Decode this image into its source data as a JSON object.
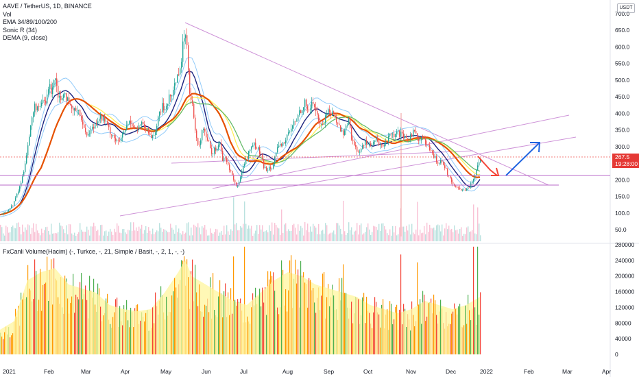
{
  "legend": {
    "symbol": "AAVE / TetherUS, 1D, BINANCE",
    "vol": "Vol",
    "ema": "EMA 34/89/100/200",
    "sonic": "Sonic R (34)",
    "dema": "DEMA (9, close)",
    "fx_volume": "FxCanli Volume(Hacim) (-, Turkce, -, 21, Simple / Basit, -, 2, 1, -, -)"
  },
  "currency": "USDT",
  "last_price": "267.5",
  "countdown": "19:28:00",
  "colors": {
    "up": "#26a69a",
    "down": "#ef5350",
    "volume_up": "#4caf50",
    "volume_down": "#f44336",
    "volume_base": "#ff9800",
    "volume_ma": "#fff59d",
    "ema34": "#1a237e",
    "ema89": "#66bb6a",
    "ema100": "#ff9800",
    "ema200": "#ffee58",
    "sonic": "#90caf9",
    "dema": "#e65100",
    "trendline": "#ce93d8",
    "red_arrow": "#f44336",
    "blue_arrow": "#1e63e0"
  },
  "chart_data": {
    "type": "candlestick",
    "price_axis": {
      "ticks": [
        "700.0",
        "650.0",
        "600.0",
        "550.0",
        "500.0",
        "450.0",
        "400.0",
        "350.0",
        "300.0",
        "250.0",
        "200.0",
        "150.0",
        "100.0",
        "50.0"
      ],
      "range": [
        50,
        700
      ]
    },
    "volume_axis": {
      "ticks": [
        "280000",
        "240000",
        "200000",
        "160000",
        "120000",
        "80000",
        "40000",
        "0"
      ],
      "range": [
        0,
        280000
      ]
    },
    "time_axis": [
      "2021",
      "Feb",
      "Mar",
      "Apr",
      "May",
      "Jun",
      "Jul",
      "Aug",
      "Sep",
      "Oct",
      "Nov",
      "Dec",
      "2022",
      "Feb",
      "Mar",
      "Apr"
    ],
    "price_path": [
      [
        0,
        95
      ],
      [
        6,
        100
      ],
      [
        12,
        110
      ],
      [
        18,
        125
      ],
      [
        23,
        150
      ],
      [
        28,
        178
      ],
      [
        33,
        215
      ],
      [
        38,
        280
      ],
      [
        42,
        330
      ],
      [
        46,
        385
      ],
      [
        50,
        420
      ],
      [
        54,
        420
      ],
      [
        58,
        410
      ],
      [
        62,
        440
      ],
      [
        66,
        430
      ],
      [
        70,
        480
      ],
      [
        74,
        470
      ],
      [
        77,
        500
      ],
      [
        80,
        510
      ],
      [
        84,
        460
      ],
      [
        88,
        440
      ],
      [
        92,
        470
      ],
      [
        96,
        450
      ],
      [
        100,
        420
      ],
      [
        104,
        410
      ],
      [
        108,
        405
      ],
      [
        112,
        420
      ],
      [
        116,
        400
      ],
      [
        120,
        360
      ],
      [
        124,
        350
      ],
      [
        128,
        335
      ],
      [
        132,
        350
      ],
      [
        136,
        360
      ],
      [
        140,
        380
      ],
      [
        144,
        390
      ],
      [
        148,
        385
      ],
      [
        152,
        380
      ],
      [
        156,
        360
      ],
      [
        160,
        345
      ],
      [
        164,
        335
      ],
      [
        168,
        320
      ],
      [
        172,
        310
      ],
      [
        176,
        325
      ],
      [
        180,
        340
      ],
      [
        184,
        360
      ],
      [
        188,
        375
      ],
      [
        192,
        370
      ],
      [
        196,
        360
      ],
      [
        200,
        350
      ],
      [
        204,
        370
      ],
      [
        208,
        360
      ],
      [
        212,
        350
      ],
      [
        216,
        340
      ],
      [
        220,
        330
      ],
      [
        224,
        340
      ],
      [
        228,
        360
      ],
      [
        232,
        400
      ],
      [
        236,
        420
      ],
      [
        240,
        410
      ],
      [
        244,
        440
      ],
      [
        248,
        450
      ],
      [
        252,
        470
      ],
      [
        256,
        500
      ],
      [
        260,
        530
      ],
      [
        264,
        560
      ],
      [
        267,
        620
      ],
      [
        270,
        650
      ],
      [
        273,
        580
      ],
      [
        276,
        470
      ],
      [
        280,
        430
      ],
      [
        284,
        340
      ],
      [
        288,
        300
      ],
      [
        292,
        320
      ],
      [
        296,
        360
      ],
      [
        300,
        330
      ],
      [
        304,
        320
      ],
      [
        308,
        280
      ],
      [
        312,
        290
      ],
      [
        316,
        300
      ],
      [
        320,
        310
      ],
      [
        324,
        260
      ],
      [
        328,
        260
      ],
      [
        332,
        245
      ],
      [
        336,
        225
      ],
      [
        340,
        200
      ],
      [
        344,
        180
      ],
      [
        348,
        190
      ],
      [
        352,
        230
      ],
      [
        356,
        250
      ],
      [
        360,
        270
      ],
      [
        364,
        290
      ],
      [
        368,
        310
      ],
      [
        372,
        300
      ],
      [
        376,
        290
      ],
      [
        380,
        270
      ],
      [
        384,
        240
      ],
      [
        388,
        230
      ],
      [
        392,
        240
      ],
      [
        396,
        240
      ],
      [
        400,
        270
      ],
      [
        404,
        290
      ],
      [
        408,
        300
      ],
      [
        412,
        310
      ],
      [
        416,
        320
      ],
      [
        420,
        340
      ],
      [
        424,
        350
      ],
      [
        428,
        370
      ],
      [
        432,
        380
      ],
      [
        436,
        405
      ],
      [
        440,
        420
      ],
      [
        444,
        430
      ],
      [
        448,
        410
      ],
      [
        452,
        420
      ],
      [
        456,
        430
      ],
      [
        460,
        410
      ],
      [
        464,
        380
      ],
      [
        468,
        360
      ],
      [
        472,
        380
      ],
      [
        476,
        400
      ],
      [
        480,
        410
      ],
      [
        484,
        400
      ],
      [
        488,
        390
      ],
      [
        492,
        370
      ],
      [
        496,
        350
      ],
      [
        500,
        340
      ],
      [
        504,
        360
      ],
      [
        508,
        380
      ],
      [
        512,
        330
      ],
      [
        516,
        300
      ],
      [
        520,
        290
      ],
      [
        524,
        280
      ],
      [
        528,
        300
      ],
      [
        532,
        320
      ],
      [
        536,
        310
      ],
      [
        540,
        300
      ],
      [
        544,
        310
      ],
      [
        548,
        320
      ],
      [
        552,
        305
      ],
      [
        556,
        300
      ],
      [
        560,
        310
      ],
      [
        564,
        320
      ],
      [
        568,
        330
      ],
      [
        572,
        335
      ],
      [
        576,
        330
      ],
      [
        580,
        340
      ],
      [
        584,
        335
      ],
      [
        588,
        325
      ],
      [
        592,
        320
      ],
      [
        596,
        330
      ],
      [
        600,
        340
      ],
      [
        604,
        345
      ],
      [
        608,
        330
      ],
      [
        612,
        320
      ],
      [
        616,
        330
      ],
      [
        620,
        310
      ],
      [
        624,
        300
      ],
      [
        628,
        280
      ],
      [
        632,
        270
      ],
      [
        636,
        260
      ],
      [
        640,
        250
      ],
      [
        644,
        260
      ],
      [
        648,
        240
      ],
      [
        652,
        220
      ],
      [
        656,
        200
      ],
      [
        660,
        190
      ],
      [
        664,
        180
      ],
      [
        668,
        175
      ],
      [
        672,
        170
      ],
      [
        676,
        168
      ],
      [
        680,
        175
      ],
      [
        684,
        180
      ],
      [
        688,
        190
      ],
      [
        692,
        210
      ],
      [
        696,
        250
      ],
      [
        700,
        267.5
      ]
    ],
    "volume_path": [
      [
        0,
        60000
      ],
      [
        20,
        80000
      ],
      [
        40,
        180000
      ],
      [
        60,
        200000
      ],
      [
        80,
        210000
      ],
      [
        100,
        170000
      ],
      [
        120,
        160000
      ],
      [
        140,
        150000
      ],
      [
        160,
        120000
      ],
      [
        180,
        110000
      ],
      [
        200,
        105000
      ],
      [
        220,
        110000
      ],
      [
        240,
        150000
      ],
      [
        260,
        200000
      ],
      [
        270,
        230000
      ],
      [
        280,
        190000
      ],
      [
        300,
        170000
      ],
      [
        320,
        150000
      ],
      [
        340,
        130000
      ],
      [
        360,
        120000
      ],
      [
        380,
        150000
      ],
      [
        400,
        180000
      ],
      [
        420,
        200000
      ],
      [
        440,
        190000
      ],
      [
        460,
        170000
      ],
      [
        480,
        160000
      ],
      [
        500,
        150000
      ],
      [
        520,
        140000
      ],
      [
        540,
        120000
      ],
      [
        560,
        110000
      ],
      [
        580,
        100000
      ],
      [
        600,
        110000
      ],
      [
        620,
        130000
      ],
      [
        640,
        120000
      ],
      [
        660,
        110000
      ],
      [
        680,
        120000
      ],
      [
        700,
        140000
      ]
    ],
    "volume_spikes": [
      [
        340,
        250000
      ],
      [
        356,
        275000
      ],
      [
        410,
        240000
      ],
      [
        500,
        230000
      ],
      [
        584,
        255000
      ],
      [
        608,
        235000
      ],
      [
        690,
        275000
      ],
      [
        696,
        275000
      ]
    ],
    "arrow_red": "down",
    "arrow_blue": "up"
  },
  "icons": {
    "arrow_red": "arrow-down-right-icon",
    "arrow_blue": "arrow-up-right-icon"
  }
}
